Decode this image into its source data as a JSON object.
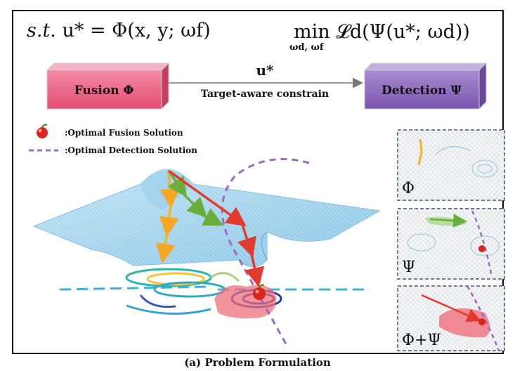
{
  "equation": {
    "left_prefix": "s.t.",
    "left_body": "u* = Φ(x, y; ωf)",
    "right_min": "min",
    "right_min_sub": "ωd, ωf",
    "right_body": "𝓛d(Ψ(u*; ωd))"
  },
  "pipeline": {
    "fusion_label": "Fusion Φ",
    "detection_label": "Detection Ψ",
    "arrow_symbol": "u*",
    "arrow_text": "Target-aware constrain"
  },
  "legend": {
    "fusion_text": ":Optimal Fusion Solution",
    "detection_text": ":Optimal Detection Solution"
  },
  "insets": [
    {
      "label": "Φ"
    },
    {
      "label": "Ψ"
    },
    {
      "label": "Φ+Ψ"
    }
  ],
  "caption": "(a) Problem Formulation",
  "colors": {
    "fusion_box": "#e8557a",
    "detection_box": "#8a63b8",
    "fusion_path": "#f5b12a",
    "detection_path": "#7dbb4a",
    "joint_path": "#e23a2e",
    "dash_curve": "#9b6ac0",
    "surface": "#7fc3e6"
  }
}
